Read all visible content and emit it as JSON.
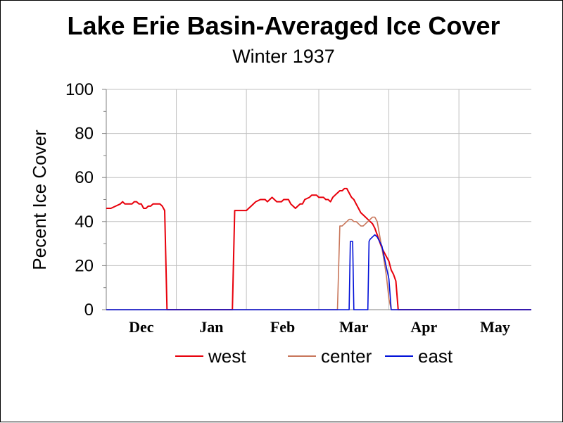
{
  "chart_data": {
    "type": "line",
    "title": "Lake Erie Basin-Averaged Ice Cover",
    "subtitle": "Winter 1937",
    "ylabel": "Pecent Ice Cover",
    "xlabel": "",
    "ylim": [
      0,
      100
    ],
    "yticks": [
      "0",
      "20",
      "40",
      "60",
      "80",
      "100"
    ],
    "xlim": [
      0,
      182
    ],
    "months": [
      {
        "label": "Dec",
        "start": 0
      },
      {
        "label": "Jan",
        "start": 30
      },
      {
        "label": "Feb",
        "start": 60
      },
      {
        "label": "Mar",
        "start": 91
      },
      {
        "label": "Apr",
        "start": 121
      },
      {
        "label": "May",
        "start": 151
      }
    ],
    "grid": true,
    "legend_position": "bottom",
    "series": [
      {
        "name": "west",
        "color": "#e8000b",
        "points": [
          [
            0,
            46
          ],
          [
            2,
            46
          ],
          [
            4,
            47
          ],
          [
            6,
            48
          ],
          [
            7,
            49
          ],
          [
            8,
            48
          ],
          [
            10,
            48
          ],
          [
            11,
            48
          ],
          [
            12,
            49
          ],
          [
            13,
            49
          ],
          [
            14,
            48
          ],
          [
            15,
            48
          ],
          [
            16,
            46
          ],
          [
            17,
            46
          ],
          [
            18,
            47
          ],
          [
            19,
            47
          ],
          [
            20,
            48
          ],
          [
            22,
            48
          ],
          [
            23,
            48
          ],
          [
            24,
            47
          ],
          [
            25,
            45
          ],
          [
            26,
            0
          ],
          [
            54,
            0
          ],
          [
            55,
            45
          ],
          [
            60,
            45
          ],
          [
            61,
            46
          ],
          [
            62,
            47
          ],
          [
            64,
            49
          ],
          [
            66,
            50
          ],
          [
            68,
            50
          ],
          [
            69,
            49
          ],
          [
            70,
            50
          ],
          [
            71,
            51
          ],
          [
            72,
            50
          ],
          [
            73,
            49
          ],
          [
            75,
            49
          ],
          [
            76,
            50
          ],
          [
            78,
            50
          ],
          [
            79,
            48
          ],
          [
            80,
            47
          ],
          [
            81,
            46
          ],
          [
            82,
            47
          ],
          [
            83,
            48
          ],
          [
            84,
            48
          ],
          [
            85,
            50
          ],
          [
            87,
            51
          ],
          [
            88,
            52
          ],
          [
            90,
            52
          ],
          [
            91,
            51
          ],
          [
            93,
            51
          ],
          [
            94,
            50
          ],
          [
            95,
            50
          ],
          [
            96,
            49
          ],
          [
            97,
            51
          ],
          [
            98,
            52
          ],
          [
            99,
            53
          ],
          [
            100,
            54
          ],
          [
            101,
            54
          ],
          [
            102,
            55
          ],
          [
            103,
            55
          ],
          [
            104,
            53
          ],
          [
            105,
            51
          ],
          [
            106,
            50
          ],
          [
            107,
            48
          ],
          [
            108,
            46
          ],
          [
            109,
            44
          ],
          [
            110,
            43
          ],
          [
            112,
            41
          ],
          [
            113,
            40
          ],
          [
            114,
            39
          ],
          [
            115,
            37
          ],
          [
            116,
            34
          ],
          [
            117,
            31
          ],
          [
            118,
            28
          ],
          [
            119,
            26
          ],
          [
            120,
            24
          ],
          [
            121,
            22
          ],
          [
            122,
            18
          ],
          [
            123,
            16
          ],
          [
            124,
            13
          ],
          [
            125,
            0
          ],
          [
            182,
            0
          ]
        ]
      },
      {
        "name": "center",
        "color": "#c8765a",
        "points": [
          [
            0,
            0
          ],
          [
            99,
            0
          ],
          [
            100,
            38
          ],
          [
            101,
            38
          ],
          [
            102,
            39
          ],
          [
            103,
            40
          ],
          [
            104,
            41
          ],
          [
            105,
            41
          ],
          [
            106,
            40
          ],
          [
            107,
            40
          ],
          [
            108,
            39
          ],
          [
            109,
            38
          ],
          [
            110,
            38
          ],
          [
            111,
            39
          ],
          [
            112,
            40
          ],
          [
            113,
            41
          ],
          [
            114,
            42
          ],
          [
            115,
            42
          ],
          [
            116,
            40
          ],
          [
            117,
            34
          ],
          [
            118,
            28
          ],
          [
            119,
            22
          ],
          [
            120,
            15
          ],
          [
            121,
            5
          ],
          [
            122,
            0
          ],
          [
            182,
            0
          ]
        ]
      },
      {
        "name": "east",
        "color": "#0010d8",
        "points": [
          [
            0,
            0
          ],
          [
            104,
            0
          ],
          [
            104.5,
            31
          ],
          [
            105.5,
            31
          ],
          [
            106,
            0
          ],
          [
            112,
            0
          ],
          [
            112.5,
            31
          ],
          [
            113,
            32
          ],
          [
            114,
            33
          ],
          [
            115,
            34
          ],
          [
            116,
            33
          ],
          [
            117,
            31
          ],
          [
            118,
            29
          ],
          [
            119,
            24
          ],
          [
            120,
            19
          ],
          [
            121,
            14
          ],
          [
            122,
            0
          ],
          [
            182,
            0
          ]
        ]
      }
    ]
  }
}
